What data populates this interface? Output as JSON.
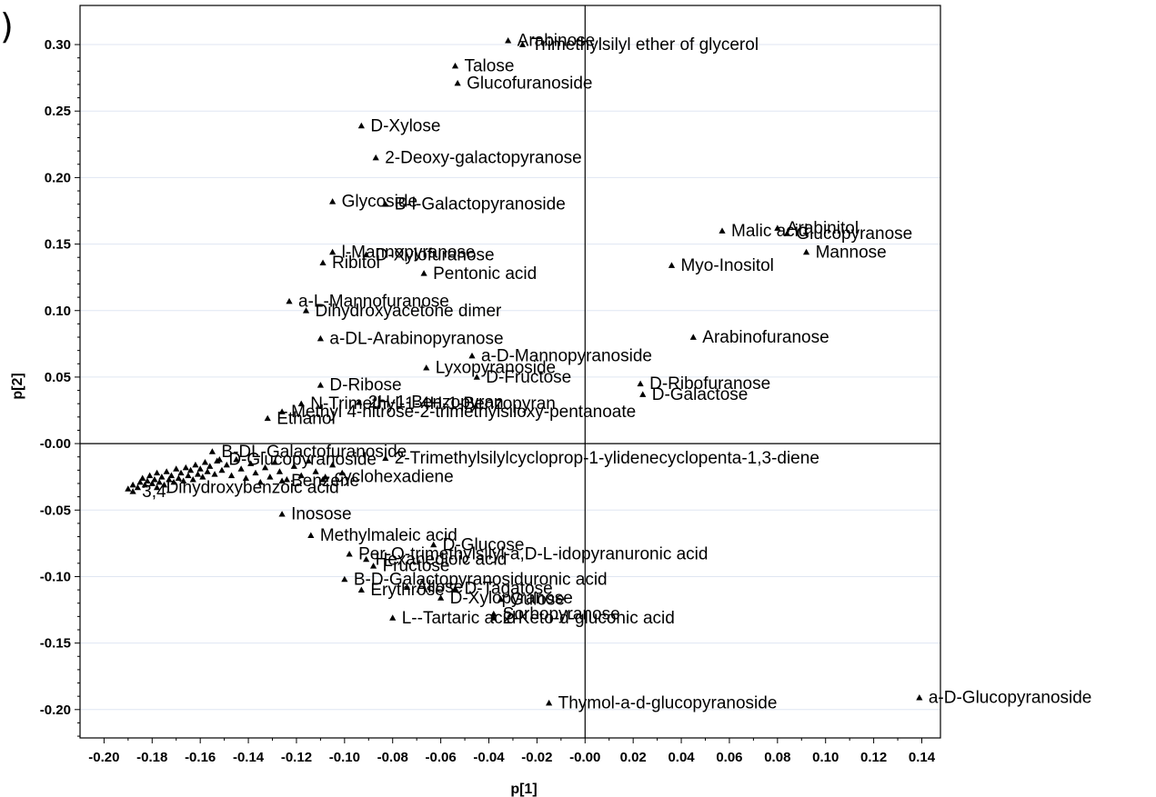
{
  "panel_label": ")",
  "chart_data": {
    "type": "scatter",
    "xlabel": "p[1]",
    "ylabel": "p[2]",
    "xlim": [
      -0.205,
      0.145
    ],
    "ylim": [
      -0.22,
      0.325
    ],
    "grid": true,
    "x_ticks": [
      -0.2,
      -0.18,
      -0.16,
      -0.14,
      -0.12,
      -0.1,
      -0.08,
      -0.06,
      -0.04,
      -0.02,
      0.0,
      0.02,
      0.04,
      0.06,
      0.08,
      0.1,
      0.12,
      0.14
    ],
    "x_tick_labels": [
      "-0.20",
      "-0.18",
      "-0.16",
      "-0.14",
      "-0.12",
      "-0.10",
      "-0.08",
      "-0.06",
      "-0.04",
      "-0.02",
      "-0.00",
      "0.02",
      "0.04",
      "0.06",
      "0.08",
      "0.10",
      "0.12",
      "0.14"
    ],
    "y_ticks": [
      0.3,
      0.25,
      0.2,
      0.15,
      0.1,
      0.05,
      0.0,
      -0.05,
      -0.1,
      -0.15,
      -0.2
    ],
    "y_tick_labels": [
      "0.30",
      "0.25",
      "0.20",
      "0.15",
      "0.10",
      "0.05",
      "-0.00",
      "-0.05",
      "-0.10",
      "-0.15",
      "-0.20"
    ],
    "points": [
      {
        "label": "Arabinose",
        "x": -0.032,
        "y": 0.303
      },
      {
        "label": "Trimethylsilyl ether of glycerol",
        "x": -0.026,
        "y": 0.3
      },
      {
        "label": "Talose",
        "x": -0.054,
        "y": 0.284
      },
      {
        "label": "Glucofuranoside",
        "x": -0.053,
        "y": 0.271
      },
      {
        "label": "D-Xylose",
        "x": -0.093,
        "y": 0.239
      },
      {
        "label": "2-Deoxy-galactopyranose",
        "x": -0.087,
        "y": 0.215
      },
      {
        "label": "Glycoside",
        "x": -0.105,
        "y": 0.182
      },
      {
        "label": "B-l-Galactopyranoside",
        "x": -0.083,
        "y": 0.18
      },
      {
        "label": "Malic acid",
        "x": 0.057,
        "y": 0.16
      },
      {
        "label": "Arabinitol",
        "x": 0.08,
        "y": 0.162
      },
      {
        "label": "Glucopyranose",
        "x": 0.084,
        "y": 0.158
      },
      {
        "label": "Mannose",
        "x": 0.092,
        "y": 0.144
      },
      {
        "label": "Myo-Inositol",
        "x": 0.036,
        "y": 0.134
      },
      {
        "label": "l-Mannopyranose",
        "x": -0.105,
        "y": 0.144
      },
      {
        "label": "D-Xylofuranose",
        "x": -0.091,
        "y": 0.142
      },
      {
        "label": "Ribitol",
        "x": -0.109,
        "y": 0.136
      },
      {
        "label": "Pentonic acid",
        "x": -0.067,
        "y": 0.128
      },
      {
        "label": "a-L-Mannofuranose",
        "x": -0.123,
        "y": 0.107
      },
      {
        "label": "Dihydroxyacetone dimer",
        "x": -0.116,
        "y": 0.1
      },
      {
        "label": "a-DL-Arabinopyranose",
        "x": -0.11,
        "y": 0.079
      },
      {
        "label": "Arabinofuranose",
        "x": 0.045,
        "y": 0.08
      },
      {
        "label": "a-D-Mannopyranoside",
        "x": -0.047,
        "y": 0.066
      },
      {
        "label": "Lyxopyranoside",
        "x": -0.066,
        "y": 0.057
      },
      {
        "label": "D-Fructose",
        "x": -0.045,
        "y": 0.05
      },
      {
        "label": "D-Ribose",
        "x": -0.11,
        "y": 0.044
      },
      {
        "label": "D-Ribofuranose",
        "x": 0.023,
        "y": 0.045
      },
      {
        "label": "D-Galactose",
        "x": 0.024,
        "y": 0.037
      },
      {
        "label": "N-Trimethyl-1-4H-1-Benzopyran",
        "x": -0.118,
        "y": 0.03
      },
      {
        "label": "2H-1-Benzopyran",
        "x": -0.094,
        "y": 0.031
      },
      {
        "label": "Methyl 4-nitrose-2-trimethylsiloxy-pentanoate",
        "x": -0.126,
        "y": 0.024
      },
      {
        "label": "Ethanol",
        "x": -0.132,
        "y": 0.019
      },
      {
        "label": "B-DL-Galactofuranoside",
        "x": -0.155,
        "y": -0.006
      },
      {
        "label": "D-Glucopyranoside",
        "x": -0.152,
        "y": -0.012
      },
      {
        "label": "2-Trimethylsilylcycloprop-1-ylidenecyclopenta-1,3-diene",
        "x": -0.083,
        "y": -0.011
      },
      {
        "label": "cyclohexadiene",
        "x": -0.108,
        "y": -0.025
      },
      {
        "label": "Benzene",
        "x": -0.126,
        "y": -0.028
      },
      {
        "label": "Dihydroxybenzoic acid",
        "x": -0.178,
        "y": -0.033
      },
      {
        "label": "3,4-",
        "x": -0.188,
        "y": -0.036
      },
      {
        "label": "Inosose",
        "x": -0.126,
        "y": -0.053
      },
      {
        "label": "Methylmaleic acid",
        "x": -0.114,
        "y": -0.069
      },
      {
        "label": "D-Glucose",
        "x": -0.063,
        "y": -0.076
      },
      {
        "label": "Per-O-trimethylsilyl-a,D-L-idopyranuronic acid",
        "x": -0.098,
        "y": -0.083
      },
      {
        "label": "Hexanedioic acid",
        "x": -0.091,
        "y": -0.087
      },
      {
        "label": "Fructose",
        "x": -0.088,
        "y": -0.092
      },
      {
        "label": "B-D-Galactopyranosiduronic acid",
        "x": -0.1,
        "y": -0.102
      },
      {
        "label": "Erythrose",
        "x": -0.093,
        "y": -0.11
      },
      {
        "label": "Allose",
        "x": -0.074,
        "y": -0.108
      },
      {
        "label": "D-Tagatose",
        "x": -0.054,
        "y": -0.109
      },
      {
        "label": "D-Xylopyranose",
        "x": -0.06,
        "y": -0.116
      },
      {
        "label": "Gulose",
        "x": -0.035,
        "y": -0.117
      },
      {
        "label": "Sorbopyranose",
        "x": -0.038,
        "y": -0.128
      },
      {
        "label": "L--Tartaric acid",
        "x": -0.08,
        "y": -0.131
      },
      {
        "label": "2-Keto-d-gluconic acid",
        "x": -0.038,
        "y": -0.131
      },
      {
        "label": "Thymol-a-d-glucopyranoside",
        "x": -0.015,
        "y": -0.195
      },
      {
        "label": "a-D-Glucopyranoside",
        "x": 0.139,
        "y": -0.191
      }
    ],
    "unlabeled_points": [
      {
        "x": -0.19,
        "y": -0.034
      },
      {
        "x": -0.188,
        "y": -0.031
      },
      {
        "x": -0.186,
        "y": -0.033
      },
      {
        "x": -0.185,
        "y": -0.029
      },
      {
        "x": -0.184,
        "y": -0.026
      },
      {
        "x": -0.183,
        "y": -0.031
      },
      {
        "x": -0.182,
        "y": -0.028
      },
      {
        "x": -0.181,
        "y": -0.024
      },
      {
        "x": -0.18,
        "y": -0.03
      },
      {
        "x": -0.179,
        "y": -0.027
      },
      {
        "x": -0.178,
        "y": -0.022
      },
      {
        "x": -0.177,
        "y": -0.029
      },
      {
        "x": -0.176,
        "y": -0.025
      },
      {
        "x": -0.175,
        "y": -0.031
      },
      {
        "x": -0.174,
        "y": -0.021
      },
      {
        "x": -0.173,
        "y": -0.027
      },
      {
        "x": -0.172,
        "y": -0.024
      },
      {
        "x": -0.171,
        "y": -0.029
      },
      {
        "x": -0.17,
        "y": -0.019
      },
      {
        "x": -0.169,
        "y": -0.026
      },
      {
        "x": -0.168,
        "y": -0.022
      },
      {
        "x": -0.167,
        "y": -0.028
      },
      {
        "x": -0.166,
        "y": -0.018
      },
      {
        "x": -0.165,
        "y": -0.024
      },
      {
        "x": -0.164,
        "y": -0.02
      },
      {
        "x": -0.163,
        "y": -0.027
      },
      {
        "x": -0.162,
        "y": -0.016
      },
      {
        "x": -0.161,
        "y": -0.023
      },
      {
        "x": -0.16,
        "y": -0.019
      },
      {
        "x": -0.159,
        "y": -0.025
      },
      {
        "x": -0.158,
        "y": -0.014
      },
      {
        "x": -0.157,
        "y": -0.021
      },
      {
        "x": -0.156,
        "y": -0.017
      },
      {
        "x": -0.154,
        "y": -0.023
      },
      {
        "x": -0.153,
        "y": -0.013
      },
      {
        "x": -0.151,
        "y": -0.02
      },
      {
        "x": -0.149,
        "y": -0.016
      },
      {
        "x": -0.147,
        "y": -0.024
      },
      {
        "x": -0.145,
        "y": -0.012
      },
      {
        "x": -0.143,
        "y": -0.019
      },
      {
        "x": -0.141,
        "y": -0.026
      },
      {
        "x": -0.139,
        "y": -0.015
      },
      {
        "x": -0.137,
        "y": -0.022
      },
      {
        "x": -0.135,
        "y": -0.029
      },
      {
        "x": -0.133,
        "y": -0.018
      },
      {
        "x": -0.131,
        "y": -0.025
      },
      {
        "x": -0.129,
        "y": -0.014
      },
      {
        "x": -0.127,
        "y": -0.021
      },
      {
        "x": -0.124,
        "y": -0.027
      },
      {
        "x": -0.121,
        "y": -0.017
      },
      {
        "x": -0.118,
        "y": -0.024
      },
      {
        "x": -0.115,
        "y": -0.013
      },
      {
        "x": -0.112,
        "y": -0.021
      },
      {
        "x": -0.109,
        "y": -0.027
      },
      {
        "x": -0.105,
        "y": -0.016
      },
      {
        "x": -0.101,
        "y": -0.022
      }
    ]
  }
}
